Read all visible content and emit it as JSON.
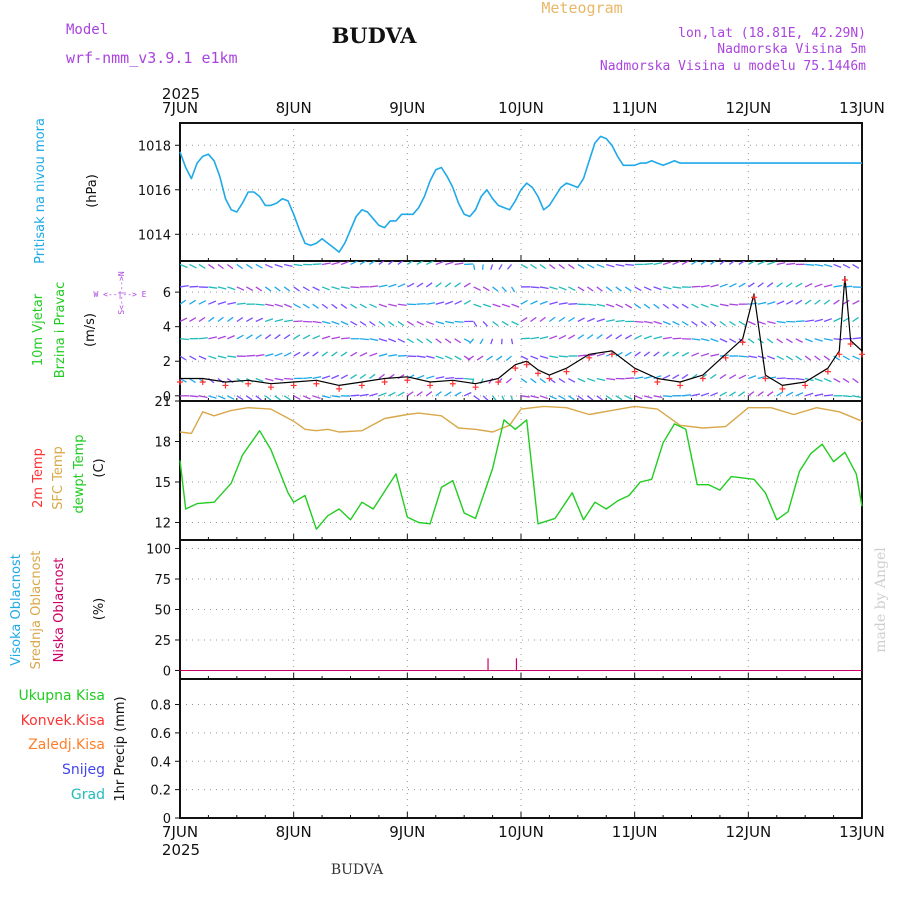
{
  "header": {
    "model_label": "Model",
    "model_name": "wrf-nmm_v3.9.1  e1km",
    "station": "BUDVA",
    "product": "Meteogram",
    "coords": "lon,lat (18.81E, 42.29N)",
    "elevation": "Nadmorska Visina 5m",
    "model_elevation": "Nadmorska Visina u modelu 75.1446m"
  },
  "footer": {
    "station": "BUDVA",
    "watermark": "made by Angel"
  },
  "colors": {
    "pressure": "#1fa9e8",
    "wind_speed": "#000000",
    "gust_marker": "#ff3333",
    "sfc_temp": "#d8a84a",
    "dewpoint": "#22cc22",
    "high_cloud": "#1fa9e8",
    "mid_cloud": "#d8a84a",
    "low_cloud": "#cc0066",
    "purple_label": "#aa44dd"
  },
  "chart_data": [
    {
      "type": "line",
      "name": "pressure",
      "ylabel_left": "Pritisak na nivou mora",
      "ylabel_right": "(hPa)",
      "x_year": "2025",
      "x_ticks": [
        "7JUN",
        "8JUN",
        "9JUN",
        "10JUN",
        "11JUN",
        "12JUN",
        "13JUN"
      ],
      "xlim_days": [
        0,
        6
      ],
      "ylim": [
        1012.8,
        1019.0
      ],
      "yticks": [
        "1014",
        "1016",
        "1018"
      ],
      "grid": true,
      "x": [
        0,
        0.05,
        0.1,
        0.15,
        0.2,
        0.25,
        0.3,
        0.35,
        0.4,
        0.45,
        0.5,
        0.55,
        0.6,
        0.65,
        0.7,
        0.75,
        0.8,
        0.85,
        0.9,
        0.95,
        1.0,
        1.05,
        1.1,
        1.15,
        1.2,
        1.25,
        1.3,
        1.35,
        1.4,
        1.45,
        1.5,
        1.55,
        1.6,
        1.65,
        1.7,
        1.75,
        1.8,
        1.85,
        1.9,
        1.95,
        2.0,
        2.05,
        2.1,
        2.15,
        2.2,
        2.25,
        2.3,
        2.35,
        2.4,
        2.45,
        2.5,
        2.55,
        2.6,
        2.65,
        2.7,
        2.75,
        2.8,
        2.85,
        2.9,
        2.95,
        3.0,
        3.05,
        3.1,
        3.15,
        3.2,
        3.25,
        3.3,
        3.35,
        3.4,
        3.45,
        3.5,
        3.55,
        3.6,
        3.65,
        3.7,
        3.75,
        3.8,
        3.85,
        3.9,
        3.95,
        4.0,
        4.05,
        4.1,
        4.15,
        4.2,
        4.25,
        4.3,
        4.35,
        4.4,
        4.45,
        4.5,
        4.55,
        4.6,
        4.65,
        4.7,
        4.75,
        4.8,
        4.85,
        4.9,
        4.95,
        5.0,
        5.05,
        5.1,
        5.15,
        5.2,
        5.25,
        5.3,
        5.35,
        5.4,
        5.45,
        5.5,
        5.55,
        5.6,
        5.65,
        5.7,
        5.75,
        5.8,
        5.85,
        5.9,
        5.95,
        6.0
      ],
      "values": [
        1017.7,
        1017.0,
        1016.5,
        1017.2,
        1017.5,
        1017.6,
        1017.3,
        1016.6,
        1015.6,
        1015.1,
        1015.0,
        1015.4,
        1015.9,
        1015.9,
        1015.7,
        1015.3,
        1015.3,
        1015.4,
        1015.6,
        1015.5,
        1014.9,
        1014.2,
        1013.6,
        1013.5,
        1013.6,
        1013.8,
        1013.6,
        1013.4,
        1013.2,
        1013.6,
        1014.2,
        1014.8,
        1015.1,
        1015.0,
        1014.7,
        1014.4,
        1014.3,
        1014.6,
        1014.6,
        1014.9,
        1014.9,
        1014.9,
        1015.2,
        1015.7,
        1016.4,
        1016.9,
        1017.0,
        1016.6,
        1016.1,
        1015.4,
        1014.9,
        1014.8,
        1015.1,
        1015.7,
        1016.0,
        1015.6,
        1015.3,
        1015.2,
        1015.1,
        1015.5,
        1016.0,
        1016.3,
        1016.1,
        1015.7,
        1015.1,
        1015.3,
        1015.7,
        1016.1,
        1016.3,
        1016.2,
        1016.1,
        1016.5,
        1017.3,
        1018.1,
        1018.4,
        1018.3,
        1018.0,
        1017.5,
        1017.1,
        1017.1,
        1017.1,
        1017.2,
        1017.2,
        1017.3,
        1017.2,
        1017.1,
        1017.2,
        1017.3,
        1017.2,
        1017.2,
        1017.2,
        1017.2,
        1017.2,
        1017.2,
        1017.2,
        1017.2,
        1017.2,
        1017.2,
        1017.2,
        1017.2,
        1017.2,
        1017.2,
        1017.2,
        1017.2,
        1017.2,
        1017.2,
        1017.2,
        1017.2,
        1017.2,
        1017.2,
        1017.2,
        1017.2,
        1017.2,
        1017.2,
        1017.2,
        1017.2,
        1017.2,
        1017.2,
        1017.2,
        1017.2,
        1017.2
      ]
    },
    {
      "type": "line",
      "name": "wind",
      "ylabel_left": [
        "10m Vjetar",
        "Brzina i Pravac"
      ],
      "ylabel_right": "(m/s)",
      "compass_label": "W  <--|-->  E",
      "compass_vertical": "S<--|-->N",
      "ylim": [
        -0.3,
        7.8
      ],
      "yticks": [
        "0",
        "2",
        "4",
        "6"
      ],
      "grid": true,
      "barb_levels_ms": [
        0,
        1,
        2.3,
        3.3,
        4.3,
        5.3,
        6.3,
        7.6
      ],
      "speed_x": [
        0,
        0.2,
        0.4,
        0.6,
        0.8,
        1.0,
        1.2,
        1.4,
        1.6,
        1.8,
        2.0,
        2.2,
        2.4,
        2.6,
        2.8,
        2.95,
        3.05,
        3.15,
        3.25,
        3.4,
        3.6,
        3.8,
        4.0,
        4.2,
        4.4,
        4.6,
        4.8,
        4.95,
        5.05,
        5.15,
        5.3,
        5.5,
        5.7,
        5.8,
        5.85,
        5.9,
        6.0
      ],
      "speed": [
        1.0,
        1.0,
        0.8,
        0.9,
        0.7,
        0.8,
        0.9,
        0.6,
        0.8,
        1.0,
        1.1,
        0.8,
        0.9,
        0.7,
        1.0,
        1.8,
        2.0,
        1.5,
        1.2,
        1.6,
        2.4,
        2.6,
        1.6,
        1.0,
        0.8,
        1.2,
        2.4,
        3.3,
        5.9,
        1.2,
        0.6,
        0.8,
        1.6,
        2.6,
        6.9,
        3.2,
        2.6
      ]
    },
    {
      "type": "line",
      "name": "temperature",
      "ylabel_left": [
        "2m Temp",
        "SFC Temp",
        "dewpt Temp"
      ],
      "ylabel_right": "(C)",
      "ylim": [
        10.7,
        21.0
      ],
      "yticks": [
        "12",
        "15",
        "18",
        "21"
      ],
      "grid": true,
      "series": [
        {
          "name": "SFC Temp",
          "x": [
            0,
            0.1,
            0.2,
            0.3,
            0.45,
            0.6,
            0.8,
            1.0,
            1.1,
            1.2,
            1.3,
            1.4,
            1.6,
            1.8,
            2.0,
            2.1,
            2.3,
            2.45,
            2.6,
            2.75,
            2.9,
            3.0,
            3.2,
            3.4,
            3.6,
            3.8,
            4.0,
            4.2,
            4.4,
            4.6,
            4.8,
            5.0,
            5.2,
            5.4,
            5.6,
            5.8,
            6.0
          ],
          "values": [
            18.7,
            18.6,
            20.2,
            19.9,
            20.3,
            20.5,
            20.4,
            19.5,
            18.9,
            18.8,
            18.9,
            18.7,
            18.8,
            19.7,
            20.0,
            20.1,
            19.9,
            19.0,
            18.9,
            18.7,
            19.2,
            20.4,
            20.6,
            20.5,
            20.0,
            20.3,
            20.6,
            20.4,
            19.2,
            19.0,
            19.1,
            20.5,
            20.5,
            20.0,
            20.5,
            20.2,
            19.5
          ]
        },
        {
          "name": "dewpt Temp",
          "x": [
            0,
            0.05,
            0.15,
            0.3,
            0.45,
            0.55,
            0.7,
            0.8,
            0.95,
            1.0,
            1.1,
            1.2,
            1.3,
            1.4,
            1.5,
            1.6,
            1.7,
            1.8,
            1.9,
            2.0,
            2.1,
            2.2,
            2.3,
            2.4,
            2.5,
            2.6,
            2.75,
            2.85,
            2.95,
            3.05,
            3.15,
            3.3,
            3.45,
            3.55,
            3.65,
            3.75,
            3.85,
            3.95,
            4.05,
            4.15,
            4.25,
            4.35,
            4.45,
            4.55,
            4.65,
            4.75,
            4.85,
            4.95,
            5.05,
            5.15,
            5.25,
            5.35,
            5.45,
            5.55,
            5.65,
            5.75,
            5.85,
            5.95,
            6.0
          ],
          "values": [
            16.6,
            13.0,
            13.4,
            13.5,
            14.9,
            17.0,
            18.8,
            17.4,
            14.2,
            13.5,
            14.0,
            11.5,
            12.5,
            13.0,
            12.2,
            13.5,
            13.0,
            14.3,
            15.6,
            12.4,
            12.0,
            11.9,
            14.6,
            15.1,
            12.7,
            12.3,
            16.0,
            19.6,
            18.9,
            19.6,
            11.9,
            12.3,
            14.2,
            12.2,
            13.5,
            13.0,
            13.6,
            14.0,
            15.0,
            15.2,
            17.9,
            19.3,
            18.9,
            14.8,
            14.8,
            14.4,
            15.4,
            15.3,
            15.2,
            14.2,
            12.2,
            12.8,
            15.8,
            17.1,
            17.8,
            16.5,
            17.2,
            15.6,
            13.2
          ]
        }
      ]
    },
    {
      "type": "bar",
      "name": "cloud_cover",
      "ylabel_left": [
        "Visoka Oblacnost",
        "Srednja Oblacnost",
        "Niska Oblacnost"
      ],
      "ylabel_right": "(%)",
      "ylim": [
        -7,
        107
      ],
      "yticks": [
        "0",
        "25",
        "50",
        "75",
        "100"
      ],
      "grid": true,
      "series": [
        {
          "name": "Niska Oblacnost",
          "x": [
            2.71,
            2.96
          ],
          "values": [
            10,
            10
          ]
        }
      ]
    },
    {
      "type": "bar",
      "name": "precipitation",
      "ylabel_left": [
        "Ukupna Kisa",
        "Konvek.Kisa",
        "Zaledj.Kisa",
        "Snijeg",
        "Grad"
      ],
      "ylabel_right": "1hr Precip (mm)",
      "ylim": [
        0,
        0.98
      ],
      "yticks": [
        "0",
        "0.2",
        "0.4",
        "0.6",
        "0.8"
      ],
      "grid": true,
      "x_year_bottom": "2025",
      "series": []
    }
  ]
}
